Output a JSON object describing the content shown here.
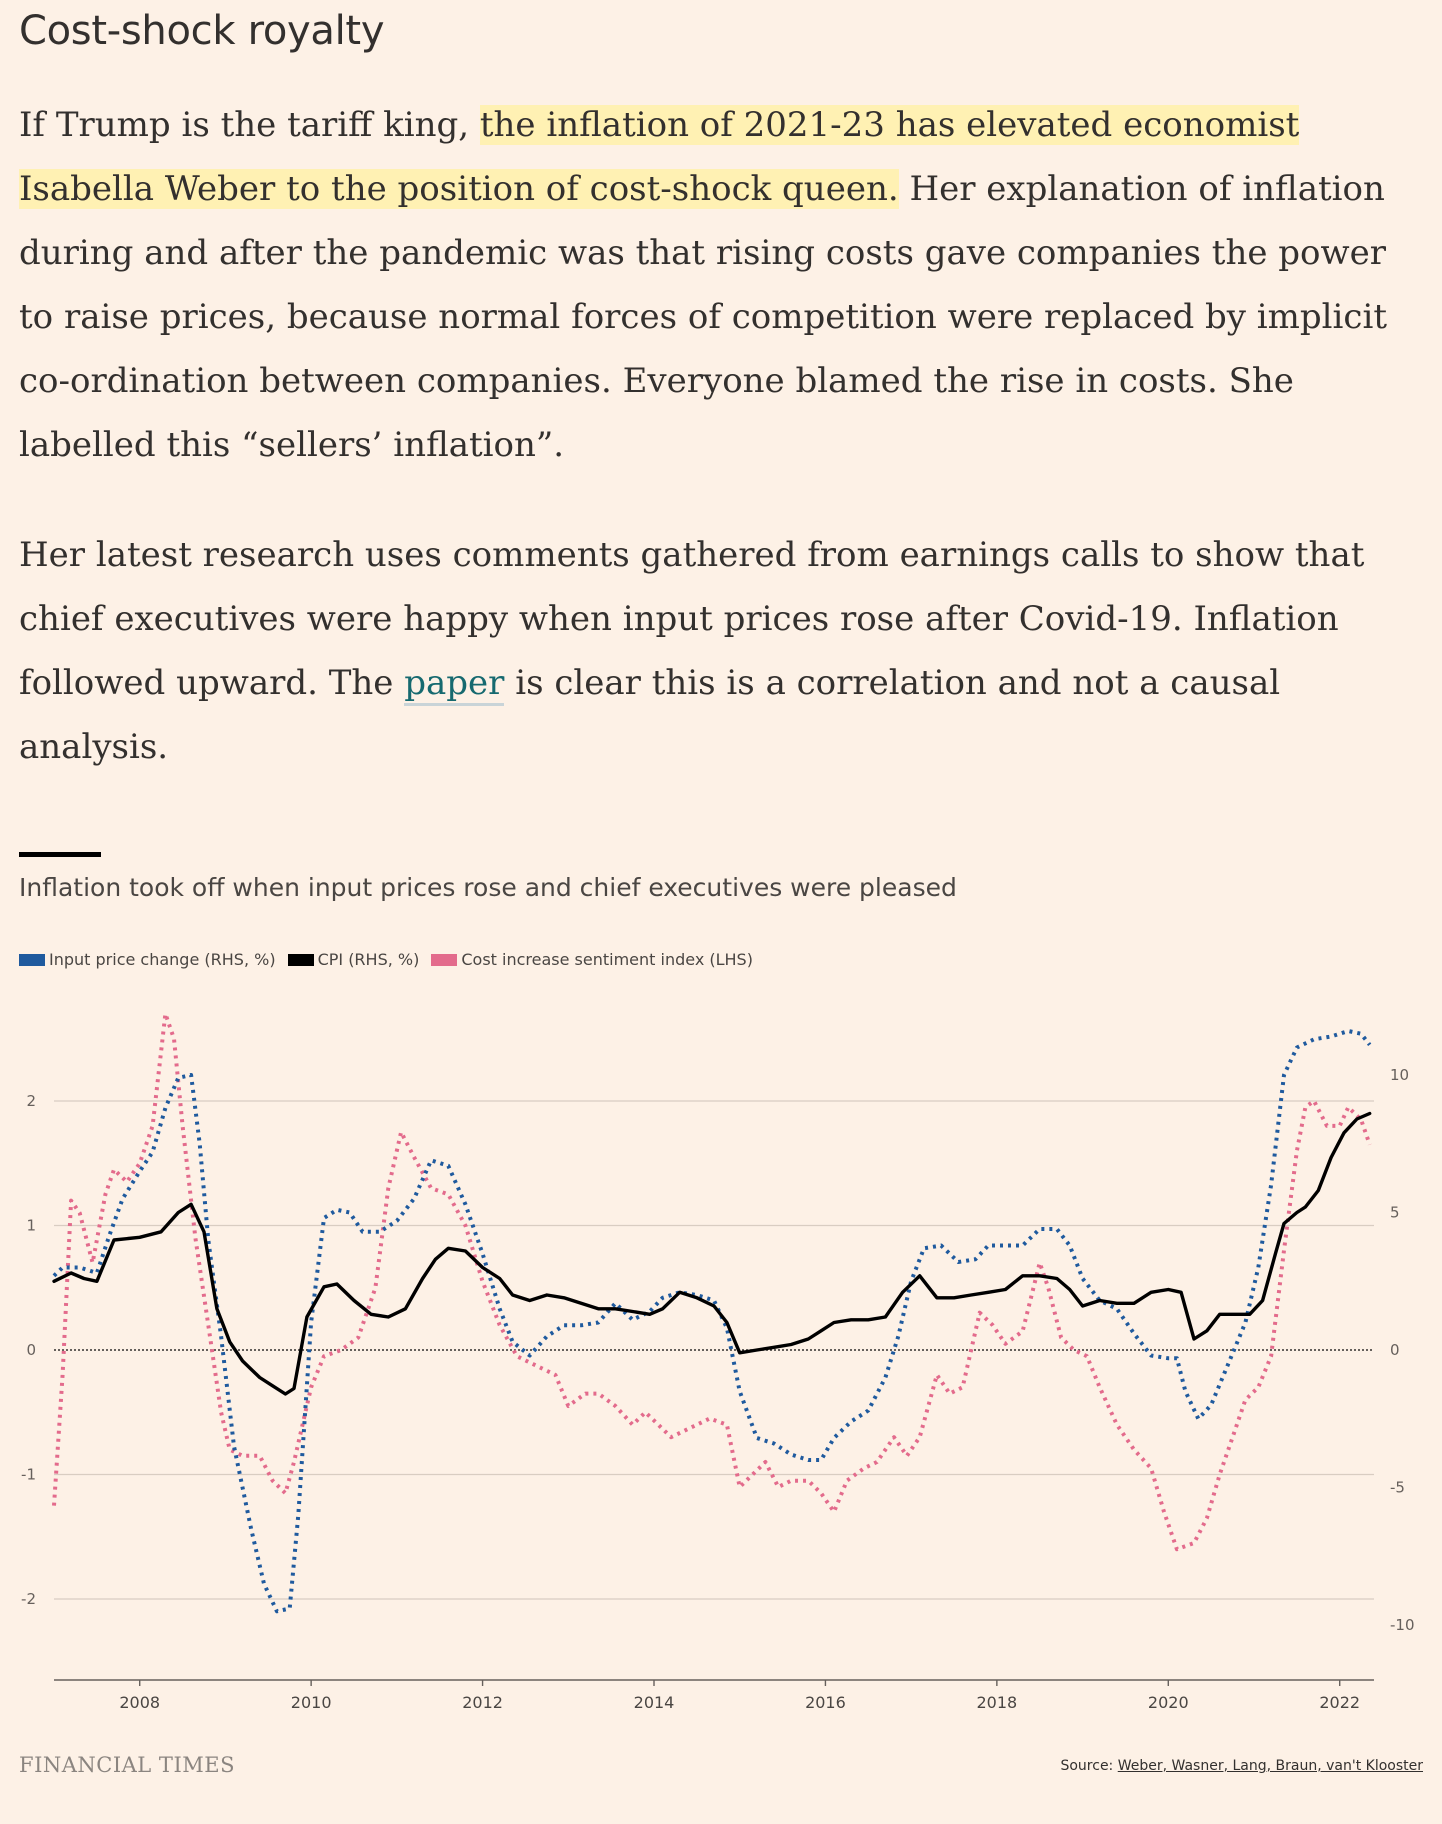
{
  "article": {
    "subheading": "Cost-shock royalty",
    "p1_a": "If Trump is the tariff king, ",
    "p1_highlight": "the inflation of 2021-23 has elevated economist Isabella Weber to the position of cost-shock queen.",
    "p1_b": " Her explanation of inflation during and after the pandemic was that rising costs gave companies the power to raise prices, because normal forces of competition were replaced by implicit co-ordination between companies. Everyone blamed the rise in costs. She labelled this “sellers’ inflation”.",
    "p2_a": "Her latest research uses comments gathered from earnings calls to show that chief executives were happy when input prices rose after Covid-19. Inflation followed upward. The ",
    "p2_link": "paper",
    "p2_b": " is clear this is a correlation and not a causal analysis."
  },
  "footer": {
    "logo": "FINANCIAL TIMES",
    "source_prefix": "Source: ",
    "source_link": "Weber, Wasner, Lang, Braun, van't Klooster"
  },
  "colors": {
    "input": "#1f5a9e",
    "cpi": "#000000",
    "sentiment": "#e36b8c",
    "background": "#fdf1e6"
  },
  "chart_data": {
    "type": "line",
    "title": "Inflation took off when input prices rose and chief executives were pleased",
    "legend": [
      {
        "name": "Input price change (RHS, %)",
        "color": "#1f5a9e"
      },
      {
        "name": "CPI (RHS, %)",
        "color": "#000000"
      },
      {
        "name": "Cost increase sentiment index (LHS)",
        "color": "#e36b8c"
      }
    ],
    "left_axis": {
      "ticks": [
        -2,
        -1,
        0,
        1,
        2
      ],
      "range": [
        -2.6,
        2.6
      ]
    },
    "right_axis": {
      "ticks": [
        -10,
        -5,
        0,
        5,
        10
      ],
      "range": [
        -12.6,
        12.6
      ]
    },
    "x_axis": {
      "range": [
        2007.0,
        2022.4
      ],
      "ticks": [
        2008,
        2010,
        2012,
        2014,
        2016,
        2018,
        2020,
        2022
      ]
    },
    "series": [
      {
        "name": "Cost increase sentiment index (LHS)",
        "axis": "left",
        "style": "dotted",
        "points": [
          [
            2007.0,
            -1.25
          ],
          [
            2007.1,
            -0.2
          ],
          [
            2007.2,
            1.2
          ],
          [
            2007.3,
            1.1
          ],
          [
            2007.45,
            0.7
          ],
          [
            2007.6,
            1.25
          ],
          [
            2007.7,
            1.45
          ],
          [
            2007.85,
            1.35
          ],
          [
            2008.0,
            1.5
          ],
          [
            2008.15,
            1.8
          ],
          [
            2008.3,
            2.7
          ],
          [
            2008.4,
            2.5
          ],
          [
            2008.5,
            1.8
          ],
          [
            2008.65,
            0.9
          ],
          [
            2008.8,
            0.2
          ],
          [
            2008.95,
            -0.5
          ],
          [
            2009.05,
            -0.8
          ],
          [
            2009.2,
            -0.85
          ],
          [
            2009.4,
            -0.85
          ],
          [
            2009.55,
            -1.05
          ],
          [
            2009.7,
            -1.15
          ],
          [
            2009.8,
            -0.9
          ],
          [
            2010.0,
            -0.3
          ],
          [
            2010.15,
            -0.05
          ],
          [
            2010.35,
            0.0
          ],
          [
            2010.55,
            0.1
          ],
          [
            2010.75,
            0.5
          ],
          [
            2010.9,
            1.3
          ],
          [
            2011.05,
            1.75
          ],
          [
            2011.2,
            1.55
          ],
          [
            2011.4,
            1.3
          ],
          [
            2011.6,
            1.25
          ],
          [
            2011.8,
            1.0
          ],
          [
            2012.0,
            0.55
          ],
          [
            2012.2,
            0.2
          ],
          [
            2012.4,
            -0.05
          ],
          [
            2012.55,
            -0.1
          ],
          [
            2012.7,
            -0.15
          ],
          [
            2012.85,
            -0.2
          ],
          [
            2013.0,
            -0.45
          ],
          [
            2013.2,
            -0.35
          ],
          [
            2013.35,
            -0.35
          ],
          [
            2013.55,
            -0.45
          ],
          [
            2013.75,
            -0.6
          ],
          [
            2013.9,
            -0.5
          ],
          [
            2014.05,
            -0.6
          ],
          [
            2014.2,
            -0.7
          ],
          [
            2014.35,
            -0.65
          ],
          [
            2014.5,
            -0.6
          ],
          [
            2014.65,
            -0.55
          ],
          [
            2014.85,
            -0.6
          ],
          [
            2015.0,
            -1.1
          ],
          [
            2015.15,
            -1.0
          ],
          [
            2015.3,
            -0.9
          ],
          [
            2015.45,
            -1.1
          ],
          [
            2015.6,
            -1.05
          ],
          [
            2015.8,
            -1.05
          ],
          [
            2015.95,
            -1.15
          ],
          [
            2016.1,
            -1.3
          ],
          [
            2016.25,
            -1.05
          ],
          [
            2016.45,
            -0.95
          ],
          [
            2016.6,
            -0.9
          ],
          [
            2016.8,
            -0.7
          ],
          [
            2016.95,
            -0.85
          ],
          [
            2017.1,
            -0.7
          ],
          [
            2017.3,
            -0.2
          ],
          [
            2017.45,
            -0.35
          ],
          [
            2017.6,
            -0.3
          ],
          [
            2017.8,
            0.3
          ],
          [
            2017.95,
            0.2
          ],
          [
            2018.1,
            0.05
          ],
          [
            2018.3,
            0.15
          ],
          [
            2018.5,
            0.7
          ],
          [
            2018.6,
            0.5
          ],
          [
            2018.75,
            0.1
          ],
          [
            2018.9,
            0.0
          ],
          [
            2019.05,
            -0.05
          ],
          [
            2019.2,
            -0.3
          ],
          [
            2019.4,
            -0.6
          ],
          [
            2019.6,
            -0.8
          ],
          [
            2019.8,
            -0.95
          ],
          [
            2019.95,
            -1.3
          ],
          [
            2020.1,
            -1.6
          ],
          [
            2020.3,
            -1.55
          ],
          [
            2020.45,
            -1.35
          ],
          [
            2020.6,
            -1.0
          ],
          [
            2020.75,
            -0.7
          ],
          [
            2020.9,
            -0.4
          ],
          [
            2021.05,
            -0.3
          ],
          [
            2021.2,
            -0.05
          ],
          [
            2021.35,
            0.8
          ],
          [
            2021.5,
            1.6
          ],
          [
            2021.6,
            1.95
          ],
          [
            2021.7,
            2.0
          ],
          [
            2021.85,
            1.8
          ],
          [
            2022.0,
            1.8
          ],
          [
            2022.1,
            1.95
          ],
          [
            2022.25,
            1.85
          ],
          [
            2022.35,
            1.65
          ]
        ]
      },
      {
        "name": "Input price change (RHS, %)",
        "axis": "right",
        "style": "dotted",
        "points": [
          [
            2007.0,
            2.7
          ],
          [
            2007.1,
            3.0
          ],
          [
            2007.3,
            3.0
          ],
          [
            2007.5,
            2.8
          ],
          [
            2007.65,
            4.2
          ],
          [
            2007.8,
            5.5
          ],
          [
            2008.0,
            6.5
          ],
          [
            2008.15,
            7.2
          ],
          [
            2008.3,
            8.8
          ],
          [
            2008.45,
            9.9
          ],
          [
            2008.6,
            10.0
          ],
          [
            2008.7,
            7.5
          ],
          [
            2008.8,
            4.0
          ],
          [
            2008.95,
            0.5
          ],
          [
            2009.1,
            -3.5
          ],
          [
            2009.3,
            -6.5
          ],
          [
            2009.45,
            -8.5
          ],
          [
            2009.6,
            -9.5
          ],
          [
            2009.75,
            -9.4
          ],
          [
            2009.85,
            -6.0
          ],
          [
            2010.0,
            1.0
          ],
          [
            2010.15,
            4.8
          ],
          [
            2010.3,
            5.1
          ],
          [
            2010.45,
            5.0
          ],
          [
            2010.6,
            4.3
          ],
          [
            2010.8,
            4.3
          ],
          [
            2011.0,
            4.7
          ],
          [
            2011.2,
            5.5
          ],
          [
            2011.4,
            6.9
          ],
          [
            2011.6,
            6.7
          ],
          [
            2011.8,
            5.3
          ],
          [
            2012.0,
            3.5
          ],
          [
            2012.2,
            1.5
          ],
          [
            2012.35,
            0.3
          ],
          [
            2012.55,
            -0.2
          ],
          [
            2012.75,
            0.5
          ],
          [
            2012.95,
            0.9
          ],
          [
            2013.15,
            0.9
          ],
          [
            2013.35,
            1.0
          ],
          [
            2013.55,
            1.7
          ],
          [
            2013.75,
            1.1
          ],
          [
            2013.95,
            1.4
          ],
          [
            2014.1,
            1.9
          ],
          [
            2014.3,
            2.1
          ],
          [
            2014.5,
            2.0
          ],
          [
            2014.7,
            1.8
          ],
          [
            2014.85,
            0.8
          ],
          [
            2015.0,
            -1.5
          ],
          [
            2015.2,
            -3.2
          ],
          [
            2015.4,
            -3.4
          ],
          [
            2015.6,
            -3.8
          ],
          [
            2015.8,
            -4.0
          ],
          [
            2015.95,
            -4.0
          ],
          [
            2016.1,
            -3.2
          ],
          [
            2016.3,
            -2.6
          ],
          [
            2016.5,
            -2.2
          ],
          [
            2016.7,
            -1.0
          ],
          [
            2016.85,
            0.5
          ],
          [
            2017.0,
            2.5
          ],
          [
            2017.15,
            3.7
          ],
          [
            2017.35,
            3.8
          ],
          [
            2017.55,
            3.2
          ],
          [
            2017.75,
            3.3
          ],
          [
            2017.9,
            3.8
          ],
          [
            2018.1,
            3.8
          ],
          [
            2018.3,
            3.8
          ],
          [
            2018.5,
            4.4
          ],
          [
            2018.7,
            4.4
          ],
          [
            2018.85,
            3.8
          ],
          [
            2019.0,
            2.6
          ],
          [
            2019.2,
            1.8
          ],
          [
            2019.4,
            1.5
          ],
          [
            2019.6,
            0.6
          ],
          [
            2019.8,
            -0.2
          ],
          [
            2020.0,
            -0.3
          ],
          [
            2020.1,
            -0.3
          ],
          [
            2020.2,
            -1.5
          ],
          [
            2020.35,
            -2.5
          ],
          [
            2020.5,
            -2.0
          ],
          [
            2020.7,
            -0.5
          ],
          [
            2020.9,
            1.0
          ],
          [
            2021.05,
            3.0
          ],
          [
            2021.2,
            6.0
          ],
          [
            2021.35,
            10.0
          ],
          [
            2021.5,
            11.0
          ],
          [
            2021.7,
            11.3
          ],
          [
            2021.9,
            11.4
          ],
          [
            2022.1,
            11.6
          ],
          [
            2022.25,
            11.5
          ],
          [
            2022.35,
            11.1
          ]
        ]
      },
      {
        "name": "CPI (RHS, %)",
        "axis": "right",
        "style": "solid",
        "points": [
          [
            2007.0,
            2.5
          ],
          [
            2007.2,
            2.8
          ],
          [
            2007.35,
            2.6
          ],
          [
            2007.5,
            2.5
          ],
          [
            2007.7,
            4.0
          ],
          [
            2008.0,
            4.1
          ],
          [
            2008.25,
            4.3
          ],
          [
            2008.45,
            5.0
          ],
          [
            2008.6,
            5.3
          ],
          [
            2008.75,
            4.3
          ],
          [
            2008.9,
            1.5
          ],
          [
            2009.05,
            0.3
          ],
          [
            2009.2,
            -0.4
          ],
          [
            2009.4,
            -1.0
          ],
          [
            2009.55,
            -1.3
          ],
          [
            2009.7,
            -1.6
          ],
          [
            2009.8,
            -1.4
          ],
          [
            2009.95,
            1.2
          ],
          [
            2010.15,
            2.3
          ],
          [
            2010.3,
            2.4
          ],
          [
            2010.5,
            1.8
          ],
          [
            2010.7,
            1.3
          ],
          [
            2010.9,
            1.2
          ],
          [
            2011.1,
            1.5
          ],
          [
            2011.3,
            2.6
          ],
          [
            2011.45,
            3.3
          ],
          [
            2011.6,
            3.7
          ],
          [
            2011.8,
            3.6
          ],
          [
            2012.0,
            3.0
          ],
          [
            2012.2,
            2.6
          ],
          [
            2012.35,
            2.0
          ],
          [
            2012.55,
            1.8
          ],
          [
            2012.75,
            2.0
          ],
          [
            2012.95,
            1.9
          ],
          [
            2013.15,
            1.7
          ],
          [
            2013.35,
            1.5
          ],
          [
            2013.55,
            1.5
          ],
          [
            2013.75,
            1.4
          ],
          [
            2013.95,
            1.3
          ],
          [
            2014.1,
            1.5
          ],
          [
            2014.3,
            2.1
          ],
          [
            2014.5,
            1.9
          ],
          [
            2014.7,
            1.6
          ],
          [
            2014.85,
            1.0
          ],
          [
            2015.0,
            -0.1
          ],
          [
            2015.2,
            0.0
          ],
          [
            2015.4,
            0.1
          ],
          [
            2015.6,
            0.2
          ],
          [
            2015.8,
            0.4
          ],
          [
            2015.95,
            0.7
          ],
          [
            2016.1,
            1.0
          ],
          [
            2016.3,
            1.1
          ],
          [
            2016.5,
            1.1
          ],
          [
            2016.7,
            1.2
          ],
          [
            2016.9,
            2.1
          ],
          [
            2017.1,
            2.7
          ],
          [
            2017.3,
            1.9
          ],
          [
            2017.5,
            1.9
          ],
          [
            2017.7,
            2.0
          ],
          [
            2017.9,
            2.1
          ],
          [
            2018.1,
            2.2
          ],
          [
            2018.3,
            2.7
          ],
          [
            2018.5,
            2.7
          ],
          [
            2018.7,
            2.6
          ],
          [
            2018.85,
            2.2
          ],
          [
            2019.0,
            1.6
          ],
          [
            2019.2,
            1.8
          ],
          [
            2019.4,
            1.7
          ],
          [
            2019.6,
            1.7
          ],
          [
            2019.8,
            2.1
          ],
          [
            2020.0,
            2.2
          ],
          [
            2020.15,
            2.1
          ],
          [
            2020.3,
            0.4
          ],
          [
            2020.45,
            0.7
          ],
          [
            2020.6,
            1.3
          ],
          [
            2020.8,
            1.3
          ],
          [
            2020.95,
            1.3
          ],
          [
            2021.1,
            1.8
          ],
          [
            2021.25,
            3.5
          ],
          [
            2021.35,
            4.6
          ],
          [
            2021.5,
            5.0
          ],
          [
            2021.6,
            5.2
          ],
          [
            2021.75,
            5.8
          ],
          [
            2021.9,
            7.0
          ],
          [
            2022.05,
            7.9
          ],
          [
            2022.2,
            8.4
          ],
          [
            2022.35,
            8.6
          ]
        ]
      }
    ]
  }
}
